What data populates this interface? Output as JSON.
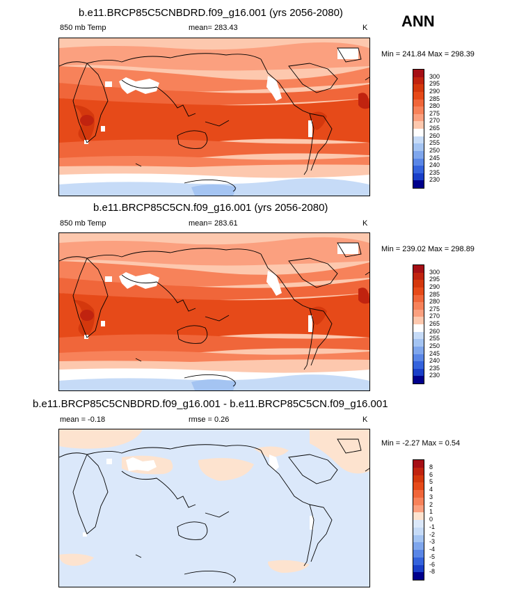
{
  "season": "ANN",
  "panels": [
    {
      "title": "b.e11.BRCP85C5CNBDRD.f09_g16.001 (yrs 2056-2080)",
      "left_label": "850 mb Temp",
      "center_label": "mean= 283.43",
      "units": "K",
      "minmax": "Min = 241.84 Max = 298.39"
    },
    {
      "title": "b.e11.BRCP85C5CN.f09_g16.001 (yrs 2056-2080)",
      "left_label": "850 mb Temp",
      "center_label": "mean= 283.61",
      "units": "K",
      "minmax": "Min = 239.02 Max = 298.89"
    },
    {
      "title": "b.e11.BRCP85C5CNBDRD.f09_g16.001 - b.e11.BRCP85C5CN.f09_g16.001",
      "left_label": "mean =  -0.18",
      "center_label": "rmse =   0.26",
      "units": "K",
      "minmax": "Min =  -2.27 Max =   0.54"
    }
  ],
  "colorbars": {
    "temperature": {
      "labels": [
        "300",
        "295",
        "290",
        "285",
        "280",
        "275",
        "270",
        "265",
        "260",
        "255",
        "250",
        "245",
        "240",
        "235",
        "230"
      ],
      "colors": [
        "#a50f15",
        "#c0230f",
        "#d4380d",
        "#e64a19",
        "#f0663a",
        "#f7825a",
        "#fba07f",
        "#fdc8ae",
        "#ffffff",
        "#c6dbf7",
        "#a4c4f2",
        "#7fa6ec",
        "#5a86e6",
        "#3563dc",
        "#1a3fc8",
        "#00008b"
      ]
    },
    "difference": {
      "labels": [
        "8",
        "6",
        "5",
        "4",
        "3",
        "2",
        "1",
        "0",
        "-1",
        "-2",
        "-3",
        "-4",
        "-5",
        "-6",
        "-8"
      ],
      "colors": [
        "#a50f15",
        "#c0230f",
        "#d4380d",
        "#e64a19",
        "#f0663a",
        "#f7825a",
        "#fba07f",
        "#fde3cf",
        "#dbe8fa",
        "#c6dbf7",
        "#a4c4f2",
        "#7fa6ec",
        "#5a86e6",
        "#3563dc",
        "#1a3fc8",
        "#00008b"
      ]
    }
  }
}
